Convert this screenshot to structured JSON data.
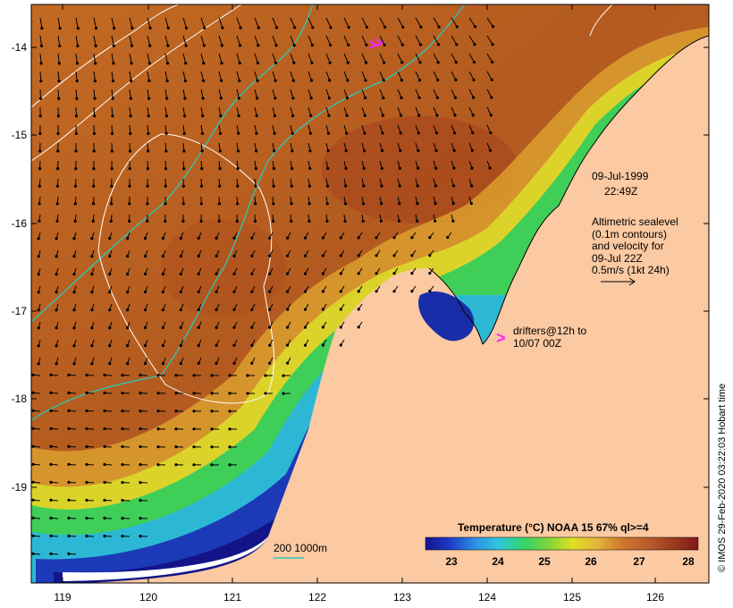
{
  "map": {
    "lon_ticks": [
      "119",
      "120",
      "121",
      "122",
      "123",
      "124",
      "125",
      "126"
    ],
    "lat_ticks": [
      "-14",
      "-15",
      "-16",
      "-17",
      "-18",
      "-19"
    ],
    "colors": {
      "land": "#fbc9a2",
      "contour": "#ffffff",
      "isobath": "#2ec7b4",
      "drifter": "#ff22ff",
      "vector": "#000000"
    }
  },
  "annotations": {
    "date": "09-Jul-1999",
    "time": "22:49Z",
    "altimetry": [
      "Altimetric sealevel",
      "(0.1m contours)",
      "and velocity for",
      "09-Jul 22Z",
      "0.5m/s (1kt 24h)"
    ],
    "drifters_symbol": ">",
    "drifters": [
      "drifters@12h to",
      "10/07 00Z"
    ],
    "isobath_legend": "200  1000m"
  },
  "colorbar": {
    "title": "Temperature (°C) NOAA 15 67% ql>=4",
    "ticks": [
      "23",
      "24",
      "25",
      "26",
      "27",
      "28"
    ],
    "colors": [
      "#14148c",
      "#1d3cc8",
      "#2d8ee6",
      "#2fc8dc",
      "#33d46a",
      "#7ed43a",
      "#e0e020",
      "#e2b43a",
      "#cf7a2e",
      "#b85a2a",
      "#9a3a20",
      "#801818"
    ]
  },
  "credit": "© IMOS 29-Feb-2020 03:22:03 Hobart time"
}
